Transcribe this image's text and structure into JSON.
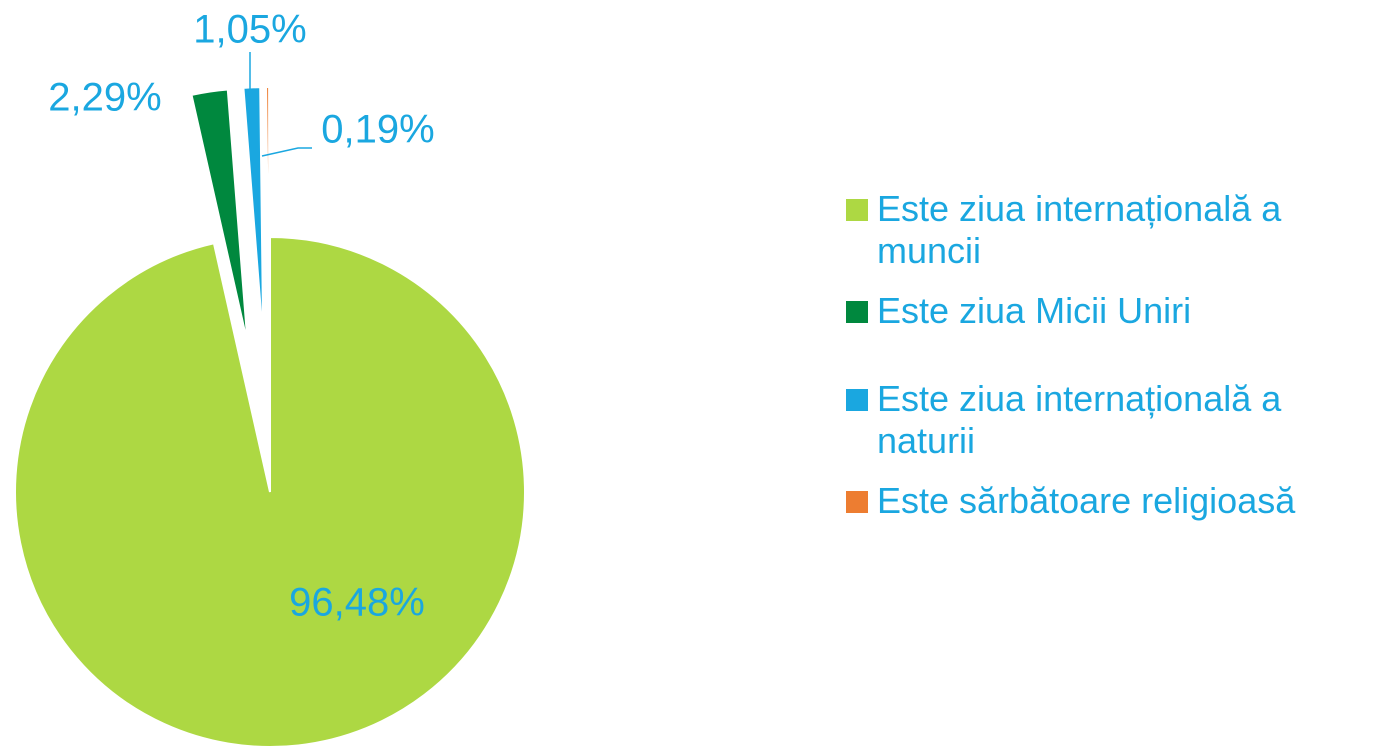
{
  "chart_data": {
    "type": "pie",
    "categories": [
      "Este ziua internațională a muncii",
      "Este ziua Micii Uniri",
      "Este ziua internațională a naturii",
      "Este sărbătoare religioasă"
    ],
    "values": [
      96.48,
      2.29,
      1.05,
      0.19
    ],
    "value_labels": [
      "96,48%",
      "2,29%",
      "1,05%",
      "0,19%"
    ],
    "colors": [
      "#add843",
      "#00883e",
      "#1aa7e0",
      "#ed7d31"
    ],
    "legend": "right"
  }
}
